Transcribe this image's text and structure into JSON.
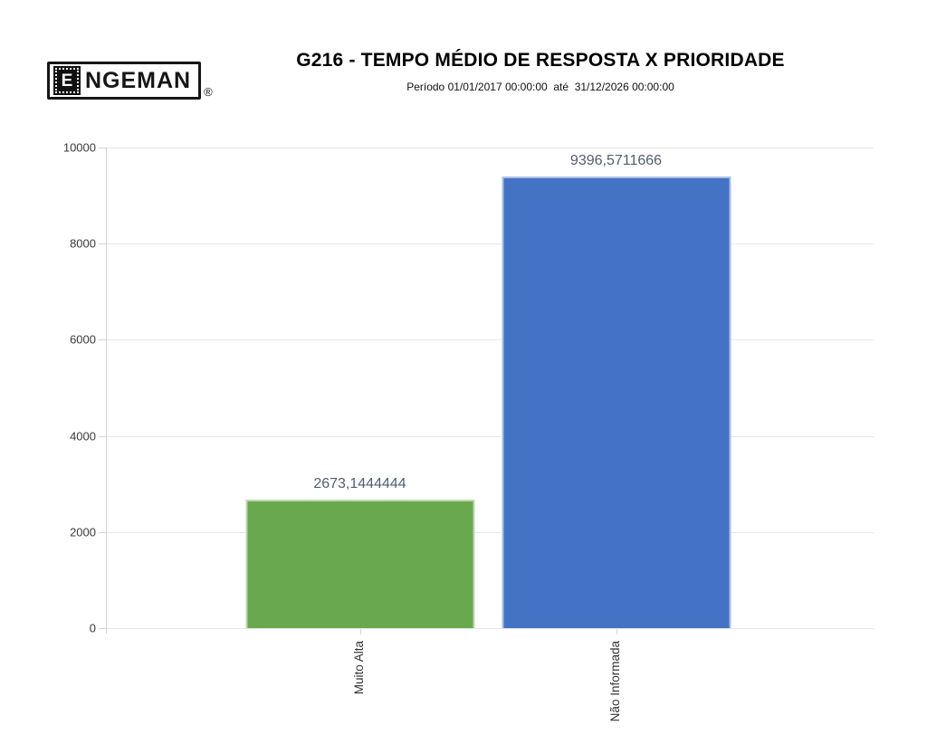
{
  "logo": {
    "letter": "E",
    "rest": "NGEMAN",
    "registered": "®"
  },
  "header": {
    "title": "G216 - TEMPO MÉDIO DE RESPOSTA X PRIORIDADE",
    "subtitle": "Período 01/01/2017 00:00:00  até  31/12/2026 00:00:00"
  },
  "chart_data": {
    "type": "bar",
    "title": "G216 - TEMPO MÉDIO DE RESPOSTA X PRIORIDADE",
    "subtitle": "Período 01/01/2017 00:00:00 até 31/12/2026 00:00:00",
    "categories": [
      "Muito Alta",
      "Não Informada"
    ],
    "values": [
      2673.1444444,
      9396.5711666
    ],
    "value_labels": [
      "2673,1444444",
      "9396,5711666"
    ],
    "bar_colors": [
      "#6aa84f",
      "#4472c4"
    ],
    "value_label_color": "#4e5f71",
    "ylim": [
      0,
      10000
    ],
    "yticks": [
      0,
      2000,
      4000,
      6000,
      8000,
      10000
    ],
    "ytick_labels": [
      "0",
      "2000",
      "4000",
      "6000",
      "8000",
      "10000"
    ],
    "xlabel": "",
    "ylabel": "",
    "grid": true,
    "legend": "none",
    "bar_orientation": "vertical",
    "category_label_rotation": -90
  }
}
